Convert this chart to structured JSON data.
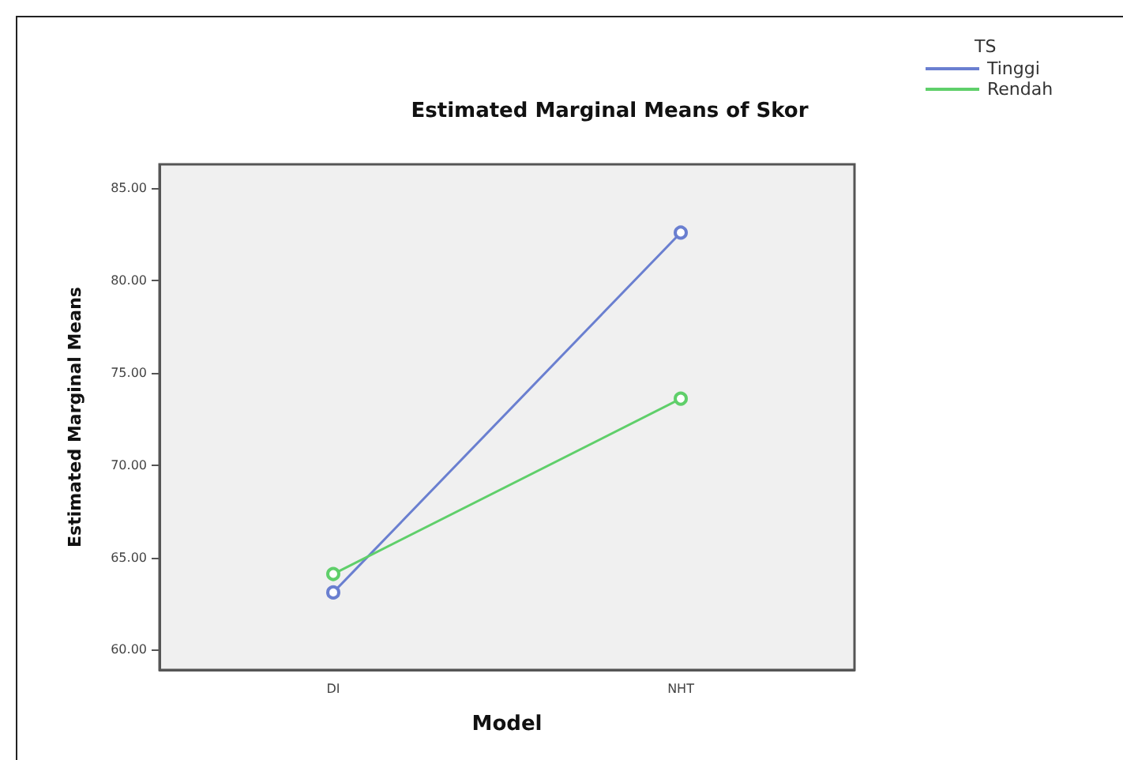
{
  "chart_data": {
    "type": "line",
    "title": "Estimated Marginal Means of Skor",
    "xlabel": "Model",
    "ylabel": "Estimated Marginal Means",
    "legend_title": "TS",
    "categories": [
      "DI",
      "NHT"
    ],
    "series": [
      {
        "name": "Tinggi",
        "color": "#6a7fd0",
        "values": [
          63.1,
          82.6
        ]
      },
      {
        "name": "Rendah",
        "color": "#5fcf6a",
        "values": [
          64.1,
          73.6
        ]
      }
    ],
    "ylim": [
      58.9,
      86.3
    ],
    "yticks": [
      {
        "value": 60,
        "label": "60.00"
      },
      {
        "value": 65,
        "label": "65.00"
      },
      {
        "value": 70,
        "label": "70.00"
      },
      {
        "value": 75,
        "label": "75.00"
      },
      {
        "value": 80,
        "label": "80.00"
      },
      {
        "value": 85,
        "label": "85.00"
      }
    ],
    "grid": false,
    "legend": "top right",
    "marker": "circle",
    "line_style": "solid"
  }
}
